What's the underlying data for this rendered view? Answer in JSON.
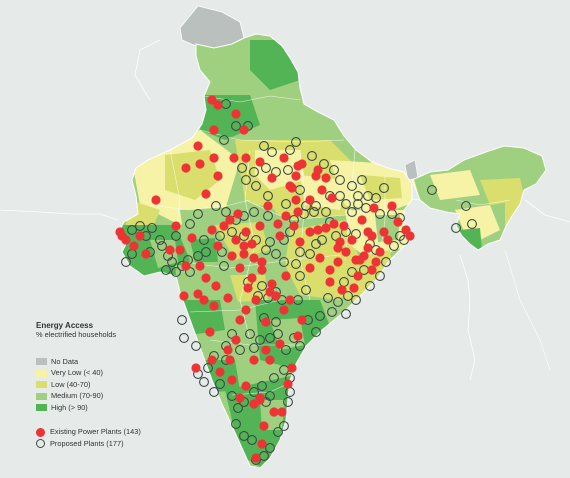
{
  "legend": {
    "title": "Energy Access",
    "subtitle": "% electrified households",
    "categories": [
      {
        "label": "No Data",
        "color": "#b9c0be"
      },
      {
        "label": "Very Low (< 40)",
        "color": "#f6f3a6"
      },
      {
        "label": "Low (40-70)",
        "color": "#d9de6c"
      },
      {
        "label": "Medium (70-90)",
        "color": "#9fd07f"
      },
      {
        "label": "High (> 90)",
        "color": "#53b456"
      }
    ],
    "existing_label": "Existing Power Plants (143)",
    "proposed_label": "Proposed Plants (177)"
  },
  "colors": {
    "background": "#e6eae8",
    "border_lines": "#ffffff",
    "existing_plant": "#ee3335",
    "proposed_plant_stroke": "#3a4a44"
  }
}
